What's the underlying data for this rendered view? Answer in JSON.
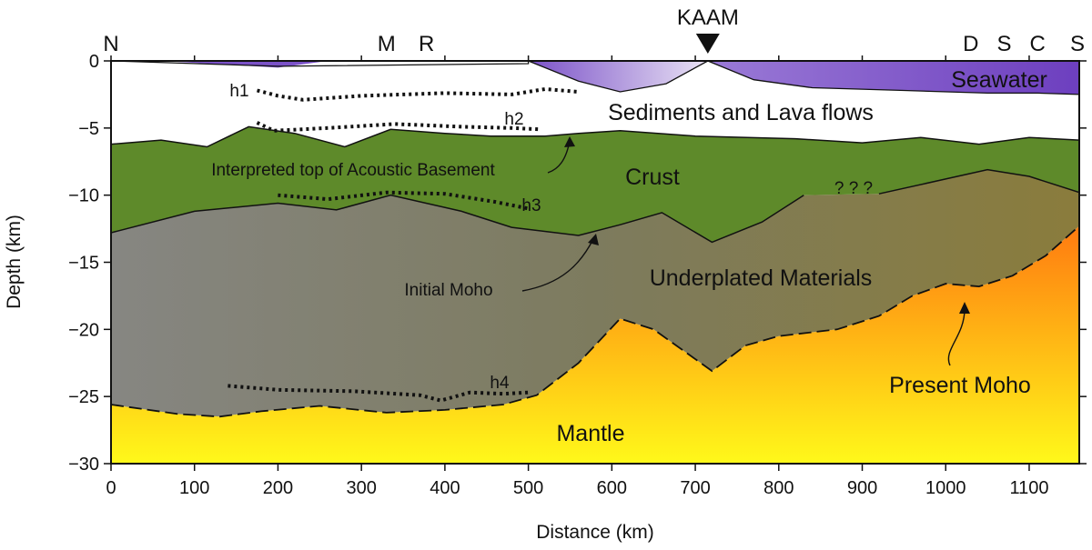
{
  "figure": {
    "xlabel": "Distance (km)",
    "ylabel": "Depth (km)",
    "xlim": [
      0,
      1160
    ],
    "ylim": [
      -30,
      0
    ],
    "x_ticks": [
      "0",
      "100",
      "200",
      "300",
      "400",
      "500",
      "600",
      "700",
      "800",
      "900",
      "1000",
      "1100"
    ],
    "y_ticks": [
      "0",
      "−5",
      "−10",
      "−15",
      "−20",
      "−25",
      "−30"
    ],
    "top_labels": [
      {
        "text": "N",
        "x": 0
      },
      {
        "text": "M",
        "x": 330
      },
      {
        "text": "R",
        "x": 378
      },
      {
        "text": "D",
        "x": 1030
      },
      {
        "text": "S",
        "x": 1070
      },
      {
        "text": "C",
        "x": 1110
      },
      {
        "text": "S",
        "x": 1160
      }
    ],
    "station": {
      "name": "KAAM",
      "x": 715,
      "marker": "inverted-triangle"
    },
    "region_labels": {
      "seawater": "Seawater",
      "sediments": "Sediments and Lava flows",
      "crust": "Crust",
      "underplated": "Underplated Materials",
      "mantle": "Mantle"
    },
    "annotations": {
      "basement": "Interpreted top of Acoustic Basement",
      "initial_moho": "Initial Moho",
      "present_moho": "Present Moho",
      "unknown": "? ? ?"
    },
    "horizons": {
      "h1": "h1",
      "h2": "h2",
      "h3": "h3",
      "h4": "h4"
    },
    "colors": {
      "seawater": "#7b52c8",
      "seawater_light": "#e9e2f4",
      "crust": "#5e8a2a",
      "underplated": "#7d7d6c",
      "mantle_top": "#ff7a10",
      "mantle_bottom": "#fffb1a"
    },
    "layers": {
      "acoustic_basement_depth_km": [
        [
          0,
          -6.2
        ],
        [
          60,
          -5.9
        ],
        [
          115,
          -6.4
        ],
        [
          165,
          -4.9
        ],
        [
          220,
          -5.4
        ],
        [
          280,
          -6.4
        ],
        [
          335,
          -5.1
        ],
        [
          400,
          -5.4
        ],
        [
          455,
          -5.6
        ],
        [
          520,
          -5.6
        ],
        [
          560,
          -5.4
        ],
        [
          610,
          -5.2
        ],
        [
          700,
          -5.6
        ],
        [
          820,
          -5.8
        ],
        [
          900,
          -6.1
        ],
        [
          970,
          -5.7
        ],
        [
          1040,
          -6.2
        ],
        [
          1100,
          -5.7
        ],
        [
          1160,
          -5.9
        ]
      ],
      "initial_moho_depth_km": [
        [
          0,
          -12.8
        ],
        [
          100,
          -11.2
        ],
        [
          200,
          -10.6
        ],
        [
          270,
          -11.1
        ],
        [
          335,
          -10.0
        ],
        [
          420,
          -11.2
        ],
        [
          480,
          -12.4
        ],
        [
          560,
          -13.0
        ],
        [
          610,
          -12.2
        ],
        [
          660,
          -11.3
        ],
        [
          720,
          -13.5
        ],
        [
          780,
          -12.0
        ],
        [
          830,
          -10.0
        ]
      ],
      "initial_moho_east_depth_km": [
        [
          920,
          -9.9
        ],
        [
          1000,
          -8.8
        ],
        [
          1050,
          -8.1
        ],
        [
          1100,
          -8.6
        ],
        [
          1160,
          -9.8
        ]
      ],
      "present_moho_depth_km": [
        [
          0,
          -25.6
        ],
        [
          80,
          -26.3
        ],
        [
          130,
          -26.5
        ],
        [
          180,
          -26.1
        ],
        [
          250,
          -25.7
        ],
        [
          330,
          -26.2
        ],
        [
          400,
          -26.0
        ],
        [
          470,
          -25.6
        ],
        [
          510,
          -24.9
        ],
        [
          560,
          -22.5
        ],
        [
          610,
          -19.2
        ],
        [
          650,
          -20.0
        ],
        [
          720,
          -23.1
        ],
        [
          760,
          -21.2
        ],
        [
          800,
          -20.5
        ],
        [
          870,
          -20.0
        ],
        [
          920,
          -19.0
        ],
        [
          960,
          -17.5
        ],
        [
          1000,
          -16.6
        ],
        [
          1040,
          -16.8
        ],
        [
          1080,
          -16.0
        ],
        [
          1120,
          -14.5
        ],
        [
          1160,
          -12.3
        ]
      ],
      "sediment_base_depth_km": [
        [
          0,
          -6.2
        ],
        [
          60,
          -5.9
        ],
        [
          115,
          -6.4
        ],
        [
          165,
          -4.9
        ],
        [
          220,
          -5.4
        ],
        [
          280,
          -6.4
        ],
        [
          335,
          -5.1
        ],
        [
          400,
          -5.4
        ],
        [
          455,
          -5.6
        ],
        [
          520,
          -5.6
        ],
        [
          560,
          -5.4
        ],
        [
          610,
          -5.2
        ],
        [
          700,
          -5.6
        ],
        [
          820,
          -5.8
        ],
        [
          900,
          -6.1
        ],
        [
          970,
          -5.7
        ],
        [
          1040,
          -6.2
        ],
        [
          1100,
          -5.7
        ],
        [
          1160,
          -5.9
        ]
      ],
      "seafloor_depth_km": [
        [
          0,
          0
        ],
        [
          200,
          -0.4
        ],
        [
          500,
          -0.2
        ],
        [
          500,
          0
        ],
        [
          560,
          -1.5
        ],
        [
          610,
          -2.3
        ],
        [
          665,
          -1.7
        ],
        [
          715,
          0
        ],
        [
          770,
          -1.4
        ],
        [
          840,
          -2.0
        ],
        [
          950,
          -2.2
        ],
        [
          1050,
          -2.4
        ],
        [
          1110,
          -2.4
        ],
        [
          1160,
          -2.5
        ]
      ],
      "horizon_h1_km": [
        [
          175,
          -2.2
        ],
        [
          200,
          -2.6
        ],
        [
          230,
          -2.9
        ],
        [
          300,
          -2.6
        ],
        [
          400,
          -2.4
        ],
        [
          480,
          -2.5
        ],
        [
          520,
          -2.1
        ],
        [
          560,
          -2.3
        ]
      ],
      "horizon_h2_km": [
        [
          175,
          -4.6
        ],
        [
          195,
          -5.2
        ],
        [
          260,
          -5.0
        ],
        [
          340,
          -4.7
        ],
        [
          420,
          -4.9
        ],
        [
          480,
          -5.0
        ],
        [
          515,
          -5.1
        ]
      ],
      "horizon_h3_km": [
        [
          200,
          -10.0
        ],
        [
          260,
          -10.3
        ],
        [
          330,
          -9.8
        ],
        [
          400,
          -9.9
        ],
        [
          460,
          -10.5
        ],
        [
          500,
          -11.0
        ]
      ],
      "horizon_h4_km": [
        [
          140,
          -24.2
        ],
        [
          200,
          -24.5
        ],
        [
          290,
          -24.6
        ],
        [
          370,
          -24.9
        ],
        [
          395,
          -25.3
        ],
        [
          430,
          -24.7
        ],
        [
          470,
          -24.8
        ],
        [
          500,
          -24.7
        ]
      ]
    }
  }
}
